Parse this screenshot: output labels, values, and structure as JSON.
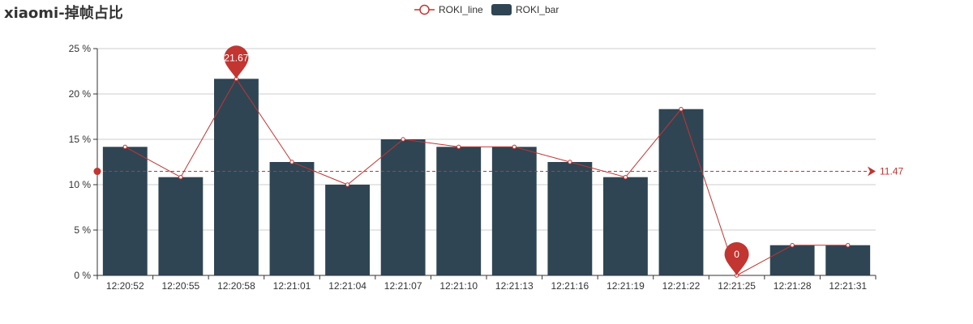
{
  "chart_data": {
    "type": "bar",
    "title": "xiaomi-掉帧占比",
    "categories": [
      "12:20:52",
      "12:20:55",
      "12:20:58",
      "12:21:01",
      "12:21:04",
      "12:21:07",
      "12:21:10",
      "12:21:13",
      "12:21:16",
      "12:21:19",
      "12:21:22",
      "12:21:25",
      "12:21:28",
      "12:21:31"
    ],
    "series": [
      {
        "name": "ROKI_line",
        "type": "line",
        "color": "#c23531",
        "values": [
          14.17,
          10.83,
          21.67,
          12.5,
          10.0,
          15.0,
          14.17,
          14.17,
          12.5,
          10.83,
          18.33,
          0,
          3.33,
          3.33
        ]
      },
      {
        "name": "ROKI_bar",
        "type": "bar",
        "color": "#2f4554",
        "values": [
          14.17,
          10.83,
          21.67,
          12.5,
          10.0,
          15.0,
          14.17,
          14.17,
          12.5,
          10.83,
          18.33,
          0,
          3.33,
          3.33
        ]
      }
    ],
    "ylim": [
      0,
      25
    ],
    "y_ticks": [
      "0 %",
      "5 %",
      "10 %",
      "15 %",
      "20 %",
      "25 %"
    ],
    "y_tick_values": [
      0,
      5,
      10,
      15,
      20,
      25
    ],
    "markpoints": [
      {
        "label": "21.67",
        "category": "12:20:58",
        "value": 21.67
      },
      {
        "label": "0",
        "category": "12:21:25",
        "value": 0
      }
    ],
    "markline": {
      "label": "11.47",
      "value": 11.47
    },
    "grid": true,
    "legend_position": "top-center",
    "colors": {
      "axis": "#333333",
      "grid": "#cccccc",
      "mark": "#c23531",
      "bar": "#2f4554",
      "line": "#c23531"
    }
  }
}
